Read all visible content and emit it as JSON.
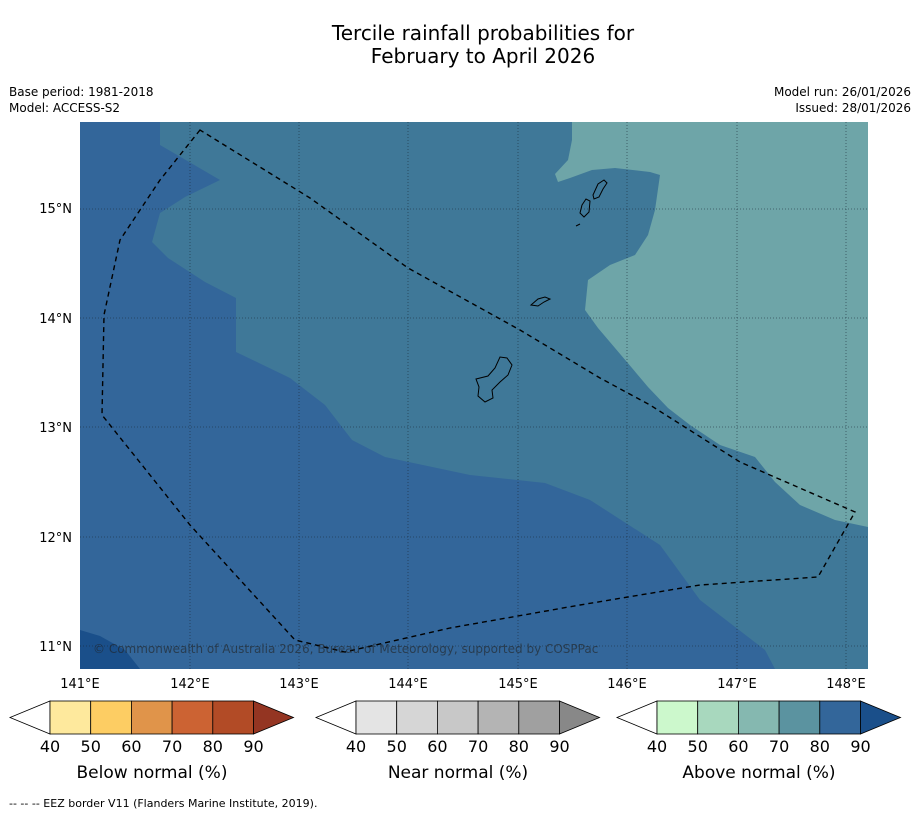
{
  "title": {
    "line1": "Tercile rainfall probabilities for",
    "line2": "February to April 2026"
  },
  "meta": {
    "base_period": "Base period: 1981-2018",
    "model": "Model: ACCESS-S2",
    "model_run": "Model run: 26/01/2026",
    "issued": "Issued: 28/01/2026"
  },
  "map": {
    "copyright": "© Commonwealth of Australia 2026, Bureau of Meteorology, supported by COSPPac",
    "lon_labels": [
      "141°E",
      "142°E",
      "143°E",
      "144°E",
      "145°E",
      "146°E",
      "147°E",
      "148°E"
    ],
    "lat_labels": [
      "15°N",
      "14°N",
      "13°N",
      "12°N",
      "11°N"
    ],
    "colors": {
      "above_80_90": "#33669a",
      "above_70_80": "#3f7898",
      "above_60_70": "#6ea5a8",
      "above_90_plus": "#1a4f8a"
    }
  },
  "colorbars": [
    {
      "label": "Below normal (%)",
      "ticks": [
        "40",
        "50",
        "60",
        "70",
        "80",
        "90"
      ],
      "colors": [
        "#ffffff",
        "#fee99d",
        "#fdcd63",
        "#e0944a",
        "#cc6333",
        "#b24b26",
        "#943522"
      ]
    },
    {
      "label": "Near normal (%)",
      "ticks": [
        "40",
        "50",
        "60",
        "70",
        "80",
        "90"
      ],
      "colors": [
        "#ffffff",
        "#e4e4e4",
        "#d6d6d6",
        "#c8c8c8",
        "#b4b4b4",
        "#a0a0a0",
        "#888888"
      ]
    },
    {
      "label": "Above normal (%)",
      "ticks": [
        "40",
        "50",
        "60",
        "70",
        "80",
        "90"
      ],
      "colors": [
        "#ffffff",
        "#ccf8cc",
        "#a8d8be",
        "#85b8b0",
        "#5b93a0",
        "#33669a",
        "#1a4f8a"
      ]
    }
  ],
  "footnote": "--  --  -- EEZ border V11 (Flanders Marine Institute, 2019)."
}
